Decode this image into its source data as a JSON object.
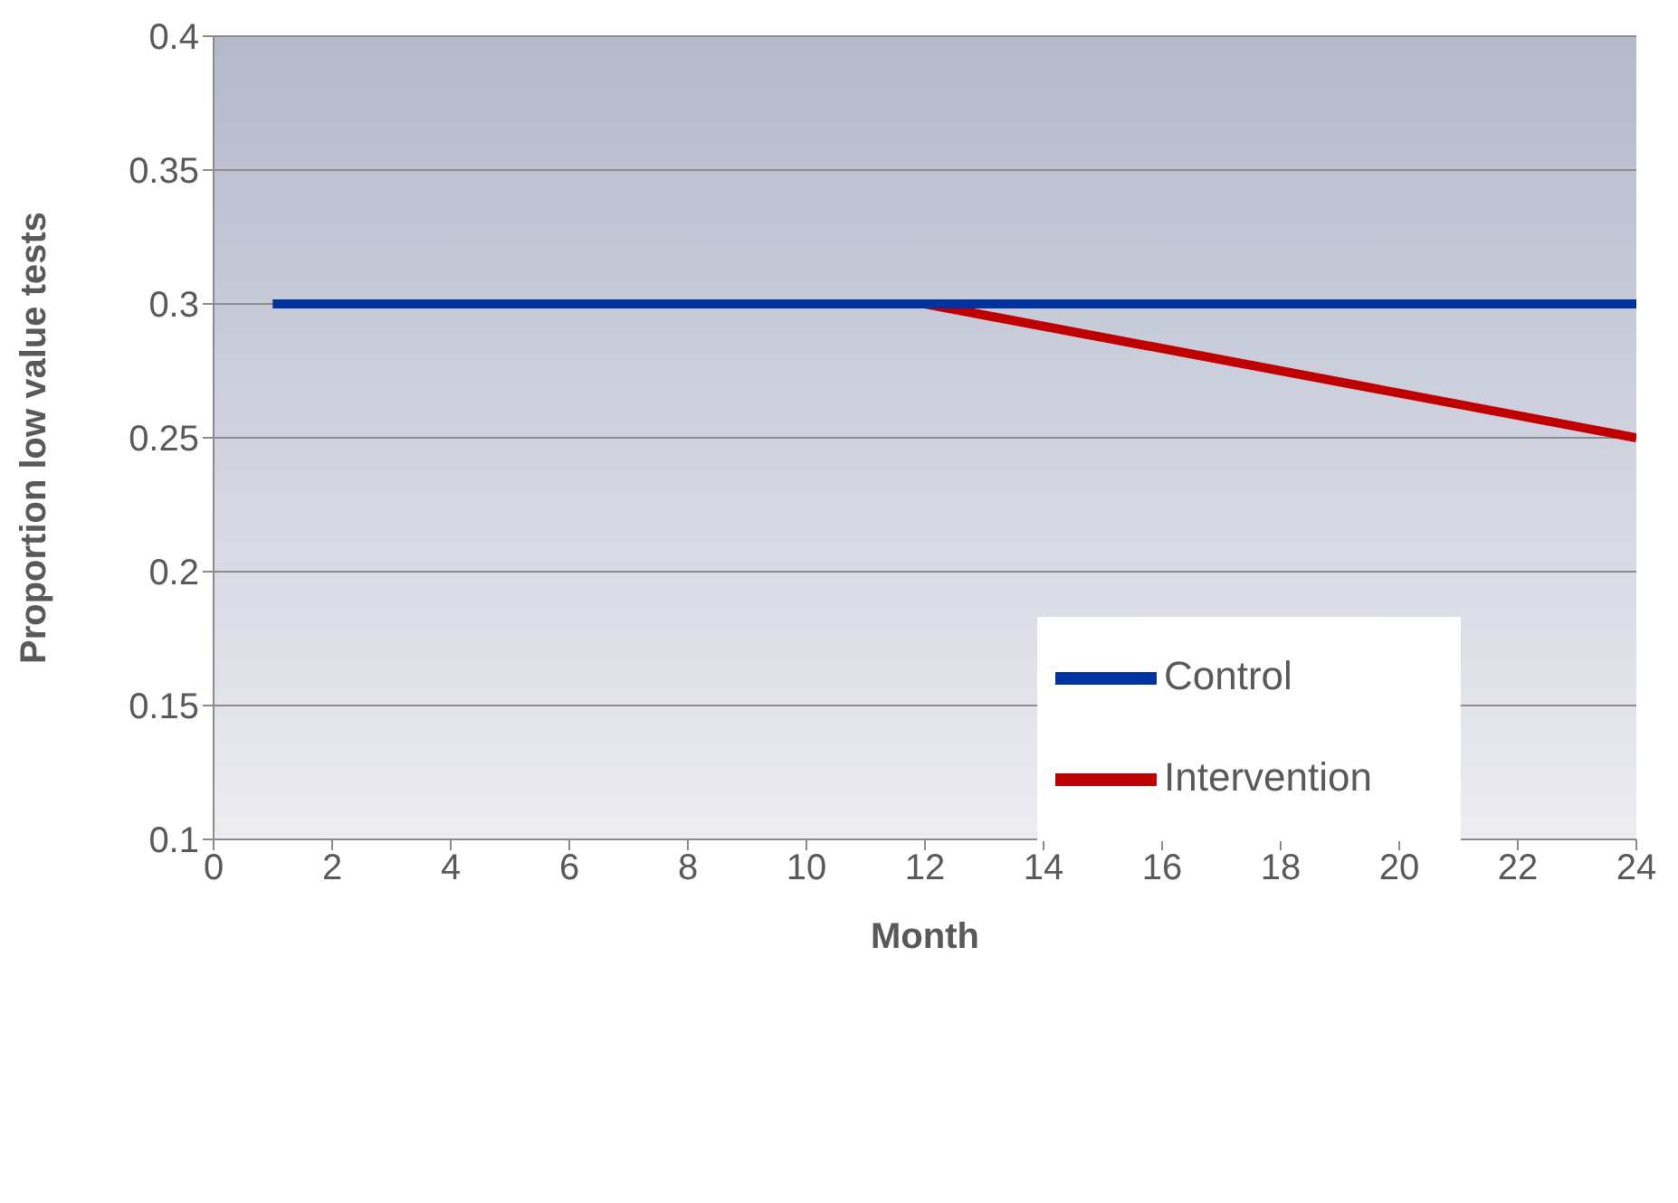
{
  "chart_data": {
    "type": "line",
    "xlabel": "Month",
    "ylabel": "Proportion low value tests",
    "xlim": [
      0,
      24
    ],
    "xticks": [
      0,
      2,
      4,
      6,
      8,
      10,
      12,
      14,
      16,
      18,
      20,
      22,
      24
    ],
    "ylim": [
      0.1,
      0.4
    ],
    "yticks": [
      0.1,
      0.15,
      0.2,
      0.25,
      0.3,
      0.35,
      0.4
    ],
    "grid": "y",
    "legend": "right",
    "marker": "none",
    "line_style": "solid",
    "series": [
      {
        "name": "Intervention",
        "color": "#c00000",
        "x": [
          1,
          12,
          24
        ],
        "values": [
          0.3,
          0.3,
          0.25
        ]
      },
      {
        "name": "Control",
        "color": "#0033a0",
        "x": [
          1,
          24
        ],
        "values": [
          0.3,
          0.3
        ]
      }
    ]
  }
}
